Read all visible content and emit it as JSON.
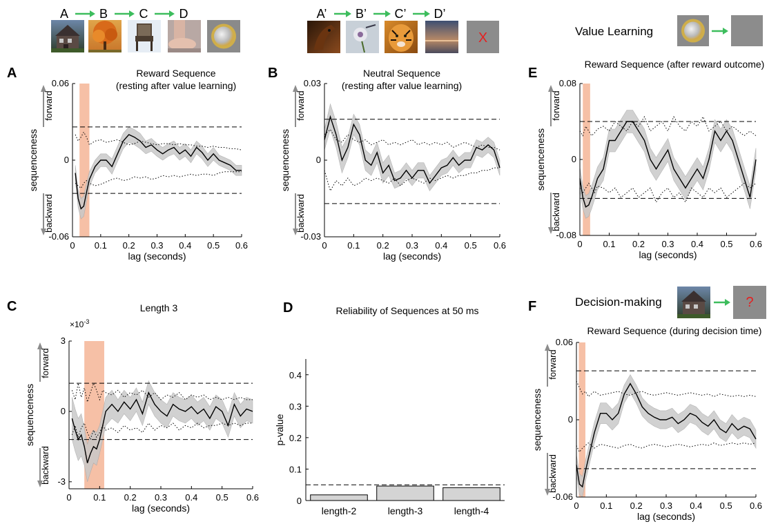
{
  "legends": {
    "reward_seq": [
      "A",
      "B",
      "C",
      "D"
    ],
    "neutral_seq": [
      "A’",
      "B’",
      "C’",
      "D’"
    ],
    "neutral_outcome": "X",
    "value_learning_label": "Value Learning",
    "decision_label": "Decision-making",
    "decision_outcome": "?",
    "arrow_color": "#3dbd5d"
  },
  "colors": {
    "highlight": "#f4b597",
    "band": "#c9c9c9",
    "line": "#000000",
    "arrow_axis": "#8c8c8c",
    "bar_fill": "#d4d4d4"
  },
  "chart_data": [
    {
      "id": "A",
      "type": "line",
      "panel_letter": "A",
      "title": "Reward Sequence",
      "subtitle": "(resting after value learning)",
      "xlabel": "lag (seconds)",
      "ylabel": "sequenceness",
      "forward_label": "forward",
      "backward_label": "backward",
      "xlim": [
        0,
        0.6
      ],
      "ylim": [
        -0.06,
        0.06
      ],
      "xticks": [
        0,
        0.1,
        0.2,
        0.3,
        0.4,
        0.5,
        0.6
      ],
      "xtick_labels": [
        "0",
        "0.1",
        "0.2",
        "0.3",
        "0.4",
        "0.5",
        "0.6"
      ],
      "yticks": [
        -0.06,
        0,
        0.06
      ],
      "ytick_labels": [
        "-0.06",
        "0",
        "0.06"
      ],
      "threshold": [
        -0.026,
        0.026
      ],
      "highlight": [
        0.025,
        0.06
      ],
      "x": [
        0.01,
        0.02,
        0.03,
        0.04,
        0.05,
        0.06,
        0.08,
        0.1,
        0.12,
        0.14,
        0.16,
        0.18,
        0.2,
        0.22,
        0.24,
        0.26,
        0.28,
        0.3,
        0.32,
        0.34,
        0.36,
        0.38,
        0.4,
        0.42,
        0.44,
        0.46,
        0.48,
        0.5,
        0.52,
        0.54,
        0.56,
        0.58,
        0.6
      ],
      "mean": [
        -0.01,
        -0.03,
        -0.038,
        -0.036,
        -0.025,
        -0.015,
        -0.005,
        0.0,
        0.0,
        -0.005,
        0.005,
        0.015,
        0.02,
        0.018,
        0.015,
        0.01,
        0.012,
        0.008,
        0.005,
        0.008,
        0.01,
        0.005,
        0.008,
        0.003,
        0.01,
        0.006,
        0.0,
        0.005,
        0.0,
        -0.002,
        -0.004,
        -0.008,
        -0.008
      ],
      "sem": [
        0.006,
        0.007,
        0.008,
        0.008,
        0.007,
        0.006,
        0.005,
        0.005,
        0.005,
        0.006,
        0.006,
        0.006,
        0.006,
        0.006,
        0.006,
        0.005,
        0.005,
        0.005,
        0.005,
        0.005,
        0.005,
        0.005,
        0.005,
        0.005,
        0.005,
        0.005,
        0.005,
        0.005,
        0.004,
        0.004,
        0.004,
        0.004,
        0.004
      ],
      "upper_dotted": [
        0.02,
        0.015,
        0.018,
        0.022,
        0.018,
        0.012,
        0.015,
        0.016,
        0.014,
        0.015,
        0.016,
        0.014,
        0.012,
        0.013,
        0.015,
        0.014,
        0.013,
        0.012,
        0.013,
        0.013,
        0.012,
        0.013,
        0.012,
        0.012,
        0.011,
        0.011,
        0.01,
        0.011,
        0.01,
        0.01,
        0.009,
        0.009,
        0.008
      ],
      "lower_dotted": [
        -0.018,
        -0.02,
        -0.022,
        -0.018,
        -0.016,
        -0.018,
        -0.02,
        -0.019,
        -0.017,
        -0.015,
        -0.014,
        -0.016,
        -0.015,
        -0.013,
        -0.014,
        -0.013,
        -0.015,
        -0.014,
        -0.012,
        -0.013,
        -0.012,
        -0.013,
        -0.012,
        -0.011,
        -0.012,
        -0.011,
        -0.011,
        -0.012,
        -0.01,
        -0.009,
        -0.009,
        -0.009,
        -0.009
      ]
    },
    {
      "id": "B",
      "type": "line",
      "panel_letter": "B",
      "title": "Neutral Sequence",
      "subtitle": "(resting after value learning)",
      "xlabel": "lag (seconds)",
      "ylabel": "sequenceness",
      "forward_label": "forward",
      "backward_label": "backward",
      "xlim": [
        0,
        0.6
      ],
      "ylim": [
        -0.03,
        0.03
      ],
      "xticks": [
        0,
        0.1,
        0.2,
        0.3,
        0.4,
        0.5,
        0.6
      ],
      "xtick_labels": [
        "0",
        "0.1",
        "0.2",
        "0.3",
        "0.4",
        "0.5",
        "0.6"
      ],
      "yticks": [
        -0.03,
        0,
        0.03
      ],
      "ytick_labels": [
        "-0.03",
        "0",
        "0.03"
      ],
      "threshold": [
        -0.017,
        0.016
      ],
      "highlight": null,
      "x": [
        0.0,
        0.02,
        0.04,
        0.06,
        0.08,
        0.1,
        0.12,
        0.14,
        0.16,
        0.18,
        0.2,
        0.22,
        0.24,
        0.26,
        0.28,
        0.3,
        0.32,
        0.34,
        0.36,
        0.38,
        0.4,
        0.42,
        0.44,
        0.46,
        0.48,
        0.5,
        0.52,
        0.54,
        0.56,
        0.58,
        0.6
      ],
      "mean": [
        0.008,
        0.017,
        0.01,
        0.0,
        0.005,
        0.014,
        0.01,
        0.0,
        -0.002,
        0.003,
        -0.005,
        -0.002,
        -0.008,
        -0.007,
        -0.004,
        -0.007,
        -0.004,
        -0.004,
        -0.009,
        -0.006,
        -0.003,
        -0.002,
        0.001,
        -0.002,
        0.0,
        0.0,
        0.005,
        0.004,
        0.006,
        0.004,
        -0.003
      ],
      "sem": [
        0.004,
        0.005,
        0.005,
        0.005,
        0.004,
        0.004,
        0.004,
        0.004,
        0.004,
        0.004,
        0.004,
        0.004,
        0.003,
        0.003,
        0.003,
        0.003,
        0.003,
        0.003,
        0.003,
        0.003,
        0.003,
        0.003,
        0.003,
        0.003,
        0.003,
        0.003,
        0.003,
        0.003,
        0.003,
        0.003,
        0.003
      ],
      "upper_dotted": [
        0.01,
        0.012,
        0.008,
        0.007,
        0.01,
        0.008,
        0.007,
        0.008,
        0.006,
        0.007,
        0.008,
        0.006,
        0.007,
        0.006,
        0.007,
        0.008,
        0.006,
        0.007,
        0.006,
        0.007,
        0.006,
        0.007,
        0.005,
        0.006,
        0.007,
        0.006,
        0.005,
        0.006,
        0.005,
        0.005,
        0.004
      ],
      "lower_dotted": [
        -0.004,
        -0.012,
        -0.008,
        -0.01,
        -0.007,
        -0.01,
        -0.009,
        -0.007,
        -0.008,
        -0.007,
        -0.008,
        -0.009,
        -0.007,
        -0.01,
        -0.008,
        -0.007,
        -0.008,
        -0.009,
        -0.007,
        -0.008,
        -0.007,
        -0.006,
        -0.007,
        -0.006,
        -0.006,
        -0.005,
        -0.005,
        -0.004,
        -0.004,
        -0.003,
        -0.003
      ]
    },
    {
      "id": "C",
      "type": "line",
      "panel_letter": "C",
      "title": "Length 3",
      "xlabel": "lag (seconds)",
      "ylabel": "sequenceness",
      "forward_label": "forward",
      "backward_label": "backward",
      "y_multiplier": "×10",
      "y_multiplier_exp": "-3",
      "xlim": [
        0,
        0.6
      ],
      "ylim": [
        -3.3,
        3
      ],
      "xticks": [
        0,
        0.1,
        0.2,
        0.3,
        0.4,
        0.5,
        0.6
      ],
      "xtick_labels": [
        "0",
        "0.1",
        "0.2",
        "0.3",
        "0.4",
        "0.5",
        "0.6"
      ],
      "yticks": [
        -3,
        0,
        3
      ],
      "ytick_labels": [
        "-3",
        "0",
        "3"
      ],
      "threshold": [
        -1.2,
        1.2
      ],
      "highlight": [
        0.05,
        0.115
      ],
      "x": [
        0.01,
        0.02,
        0.03,
        0.04,
        0.05,
        0.06,
        0.07,
        0.08,
        0.09,
        0.1,
        0.11,
        0.12,
        0.14,
        0.16,
        0.18,
        0.2,
        0.22,
        0.24,
        0.26,
        0.28,
        0.3,
        0.32,
        0.34,
        0.36,
        0.38,
        0.4,
        0.42,
        0.44,
        0.46,
        0.48,
        0.5,
        0.52,
        0.54,
        0.56,
        0.58,
        0.6
      ],
      "mean": [
        -0.3,
        -0.8,
        -1.2,
        -1.0,
        -1.5,
        -2.2,
        -1.8,
        -1.5,
        -1.6,
        -1.2,
        -0.6,
        0.0,
        0.3,
        0.0,
        0.4,
        0.1,
        0.5,
        -0.1,
        0.8,
        0.3,
        0.0,
        -0.2,
        0.3,
        0.1,
        0.0,
        0.2,
        -0.1,
        0.1,
        -0.3,
        0.2,
        0.0,
        -0.6,
        0.3,
        -0.2,
        0.1,
        0.0
      ],
      "sem": [
        0.9,
        0.9,
        0.9,
        0.9,
        0.8,
        0.8,
        0.8,
        0.7,
        0.7,
        0.6,
        0.6,
        0.6,
        0.6,
        0.5,
        0.5,
        0.5,
        0.5,
        0.5,
        0.5,
        0.5,
        0.5,
        0.5,
        0.5,
        0.5,
        0.5,
        0.5,
        0.5,
        0.5,
        0.5,
        0.5,
        0.5,
        0.5,
        0.5,
        0.5,
        0.5,
        0.5
      ],
      "upper_dotted": [
        0.9,
        0.5,
        1.2,
        0.6,
        1.0,
        0.4,
        0.8,
        1.2,
        0.9,
        0.5,
        0.9,
        0.8,
        0.7,
        0.9,
        0.6,
        0.8,
        0.7,
        0.9,
        0.6,
        0.8,
        0.5,
        0.7,
        0.6,
        0.8,
        0.5,
        0.7,
        0.6,
        0.7,
        0.5,
        0.6,
        0.5,
        0.6,
        0.5,
        0.6,
        0.5,
        0.5
      ],
      "lower_dotted": [
        -1.0,
        -0.6,
        -1.1,
        -0.7,
        -0.5,
        -0.9,
        -1.2,
        -0.8,
        -1.1,
        -0.9,
        -0.6,
        -0.8,
        -0.7,
        -0.9,
        -0.6,
        -0.8,
        -0.7,
        -0.9,
        -0.5,
        -0.8,
        -0.6,
        -0.7,
        -0.5,
        -0.8,
        -0.6,
        -0.7,
        -0.5,
        -0.7,
        -0.6,
        -0.6,
        -0.5,
        -0.6,
        -0.5,
        -0.6,
        -0.5,
        -0.5
      ]
    },
    {
      "id": "D",
      "type": "bar",
      "panel_letter": "D",
      "title": "Reliability of Sequences at 50 ms",
      "ylabel": "p-value",
      "categories": [
        "length-2",
        "length-3",
        "length-4"
      ],
      "values": [
        0.018,
        0.046,
        0.041
      ],
      "ylim": [
        0,
        0.45
      ],
      "yticks": [
        0,
        0.1,
        0.2,
        0.3,
        0.4
      ],
      "ytick_labels": [
        "0",
        "0.1",
        "0.2",
        "0.3",
        "0.4"
      ],
      "threshold": 0.05
    },
    {
      "id": "E",
      "type": "line",
      "panel_letter": "E",
      "title": "Reward Sequence (after reward outcome)",
      "xlabel": "lag (seconds)",
      "ylabel": "sequenceness",
      "forward_label": "forward",
      "backward_label": "backward",
      "xlim": [
        0,
        0.6
      ],
      "ylim": [
        -0.08,
        0.08
      ],
      "xticks": [
        0,
        0.1,
        0.2,
        0.3,
        0.4,
        0.5,
        0.6
      ],
      "xtick_labels": [
        "0",
        "0.1",
        "0.2",
        "0.3",
        "0.4",
        "0.5",
        "0.6"
      ],
      "yticks": [
        -0.08,
        0,
        0.08
      ],
      "ytick_labels": [
        "-0.08",
        "0",
        "0.08"
      ],
      "threshold": [
        -0.041,
        0.04
      ],
      "highlight": [
        0.01,
        0.035
      ],
      "x": [
        0.0,
        0.01,
        0.02,
        0.03,
        0.04,
        0.05,
        0.06,
        0.08,
        0.1,
        0.12,
        0.14,
        0.16,
        0.18,
        0.2,
        0.22,
        0.24,
        0.26,
        0.28,
        0.3,
        0.32,
        0.34,
        0.36,
        0.38,
        0.4,
        0.42,
        0.44,
        0.46,
        0.48,
        0.5,
        0.52,
        0.54,
        0.56,
        0.58,
        0.6
      ],
      "mean": [
        -0.02,
        -0.04,
        -0.05,
        -0.048,
        -0.04,
        -0.03,
        -0.02,
        -0.01,
        0.02,
        0.02,
        0.03,
        0.04,
        0.04,
        0.03,
        0.02,
        0.0,
        -0.01,
        0.0,
        0.01,
        -0.01,
        -0.02,
        -0.03,
        -0.02,
        -0.01,
        -0.02,
        0.0,
        0.03,
        0.02,
        0.03,
        0.02,
        0.0,
        -0.02,
        -0.04,
        0.0
      ],
      "sem": [
        0.012,
        0.012,
        0.012,
        0.012,
        0.012,
        0.012,
        0.012,
        0.012,
        0.012,
        0.012,
        0.012,
        0.012,
        0.012,
        0.012,
        0.012,
        0.012,
        0.012,
        0.012,
        0.012,
        0.012,
        0.012,
        0.012,
        0.012,
        0.012,
        0.012,
        0.012,
        0.012,
        0.012,
        0.012,
        0.012,
        0.012,
        0.012,
        0.012,
        0.012
      ],
      "upper_dotted": [
        0.03,
        0.025,
        0.035,
        0.03,
        0.025,
        0.028,
        0.032,
        0.035,
        0.03,
        0.04,
        0.035,
        0.03,
        0.04,
        0.035,
        0.045,
        0.03,
        0.035,
        0.04,
        0.03,
        0.045,
        0.035,
        0.03,
        0.04,
        0.035,
        0.045,
        0.03,
        0.035,
        0.04,
        0.03,
        0.035,
        0.03,
        0.025,
        0.03,
        0.025
      ],
      "lower_dotted": [
        -0.03,
        -0.035,
        -0.03,
        -0.025,
        -0.03,
        -0.035,
        -0.028,
        -0.03,
        -0.035,
        -0.03,
        -0.04,
        -0.035,
        -0.03,
        -0.04,
        -0.035,
        -0.03,
        -0.045,
        -0.035,
        -0.03,
        -0.04,
        -0.035,
        -0.045,
        -0.03,
        -0.035,
        -0.04,
        -0.03,
        -0.035,
        -0.03,
        -0.04,
        -0.035,
        -0.03,
        -0.025,
        -0.03,
        -0.025
      ]
    },
    {
      "id": "F",
      "type": "line",
      "panel_letter": "F",
      "title": "Reward Sequence (during decision time)",
      "xlabel": "lag (seconds)",
      "ylabel": "sequenceness",
      "forward_label": "forward",
      "backward_label": "backward",
      "xlim": [
        0,
        0.6
      ],
      "ylim": [
        -0.06,
        0.06
      ],
      "xticks": [
        0,
        0.1,
        0.2,
        0.3,
        0.4,
        0.5,
        0.6
      ],
      "xtick_labels": [
        "0",
        "0.1",
        "0.2",
        "0.3",
        "0.4",
        "0.5",
        "0.6"
      ],
      "yticks": [
        -0.06,
        0,
        0.06
      ],
      "ytick_labels": [
        "-0.06",
        "0",
        "0.06"
      ],
      "threshold": [
        -0.038,
        0.038
      ],
      "highlight": [
        0.008,
        0.03
      ],
      "x": [
        0.0,
        0.01,
        0.02,
        0.03,
        0.04,
        0.05,
        0.06,
        0.08,
        0.1,
        0.12,
        0.14,
        0.16,
        0.18,
        0.2,
        0.22,
        0.24,
        0.26,
        0.28,
        0.3,
        0.32,
        0.34,
        0.36,
        0.38,
        0.4,
        0.42,
        0.44,
        0.46,
        0.48,
        0.5,
        0.52,
        0.54,
        0.56,
        0.58,
        0.6
      ],
      "mean": [
        -0.035,
        -0.05,
        -0.052,
        -0.04,
        -0.03,
        -0.02,
        -0.01,
        0.005,
        0.005,
        0.0,
        0.005,
        0.02,
        0.028,
        0.02,
        0.01,
        0.005,
        0.002,
        0.0,
        0.0,
        0.002,
        -0.003,
        0.0,
        0.005,
        0.003,
        -0.002,
        -0.005,
        0.0,
        -0.007,
        -0.01,
        -0.003,
        -0.008,
        -0.005,
        -0.007,
        -0.015
      ],
      "sem": [
        0.008,
        0.008,
        0.008,
        0.008,
        0.008,
        0.008,
        0.008,
        0.008,
        0.008,
        0.008,
        0.008,
        0.007,
        0.007,
        0.007,
        0.007,
        0.007,
        0.007,
        0.007,
        0.007,
        0.007,
        0.007,
        0.007,
        0.007,
        0.007,
        0.007,
        0.007,
        0.007,
        0.007,
        0.007,
        0.007,
        0.007,
        0.007,
        0.007,
        0.007
      ],
      "upper_dotted": [
        0.03,
        0.025,
        0.02,
        0.022,
        0.018,
        0.02,
        0.022,
        0.019,
        0.02,
        0.021,
        0.022,
        0.02,
        0.019,
        0.021,
        0.022,
        0.02,
        0.019,
        0.02,
        0.021,
        0.02,
        0.019,
        0.02,
        0.021,
        0.02,
        0.019,
        0.02,
        0.018,
        0.02,
        0.019,
        0.018,
        0.019,
        0.018,
        0.019,
        0.018
      ],
      "lower_dotted": [
        -0.02,
        -0.025,
        -0.022,
        -0.02,
        -0.018,
        -0.02,
        -0.022,
        -0.019,
        -0.02,
        -0.021,
        -0.022,
        -0.02,
        -0.019,
        -0.021,
        -0.022,
        -0.02,
        -0.019,
        -0.02,
        -0.021,
        -0.02,
        -0.019,
        -0.02,
        -0.021,
        -0.02,
        -0.019,
        -0.02,
        -0.018,
        -0.02,
        -0.019,
        -0.018,
        -0.019,
        -0.018,
        -0.019,
        -0.018
      ]
    }
  ]
}
